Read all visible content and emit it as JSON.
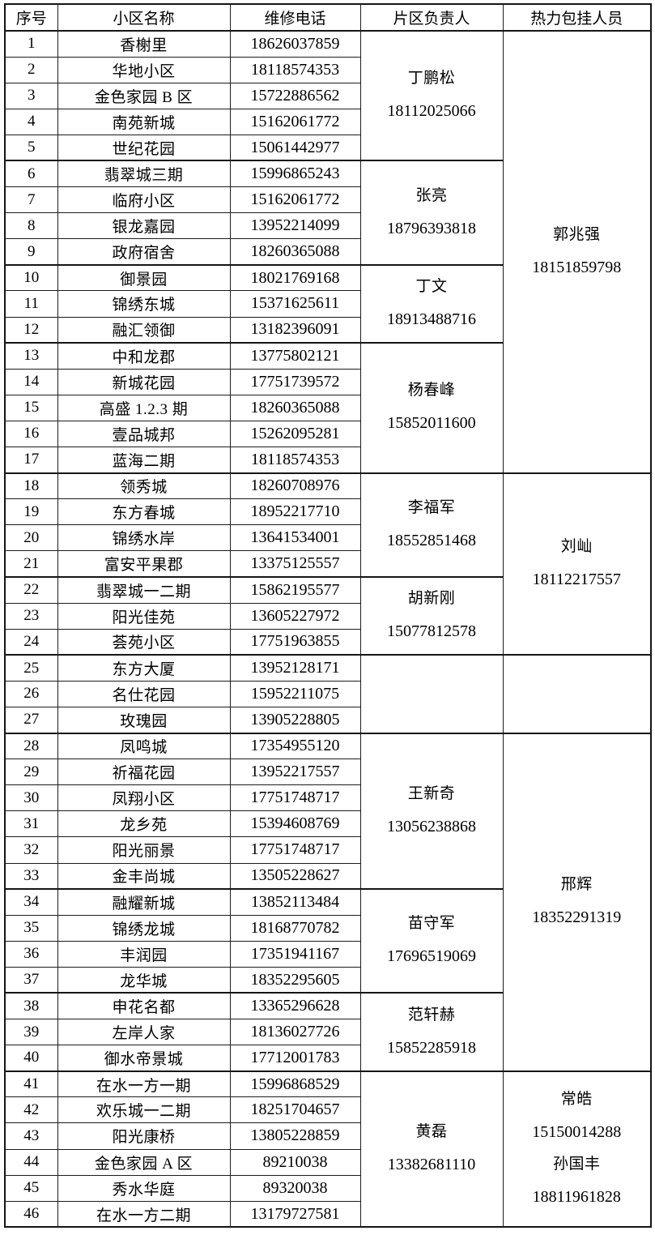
{
  "table": {
    "headers": [
      "序号",
      "小区名称",
      "维修电话",
      "片区负责人",
      "热力包挂人员"
    ],
    "rows": [
      {
        "no": "1",
        "community": "香榭里",
        "phone": "18626037859"
      },
      {
        "no": "2",
        "community": "华地小区",
        "phone": "18118574353"
      },
      {
        "no": "3",
        "community": "金色家园 B 区",
        "phone": "15722886562"
      },
      {
        "no": "4",
        "community": "南苑新城",
        "phone": "15162061772"
      },
      {
        "no": "5",
        "community": "世纪花园",
        "phone": "15061442977"
      },
      {
        "no": "6",
        "community": "翡翠城三期",
        "phone": "15996865243"
      },
      {
        "no": "7",
        "community": "临府小区",
        "phone": "15162061772"
      },
      {
        "no": "8",
        "community": "银龙嘉园",
        "phone": "13952214099"
      },
      {
        "no": "9",
        "community": "政府宿舍",
        "phone": "18260365088"
      },
      {
        "no": "10",
        "community": "御景园",
        "phone": "18021769168"
      },
      {
        "no": "11",
        "community": "锦绣东城",
        "phone": "15371625611"
      },
      {
        "no": "12",
        "community": "融汇领御",
        "phone": "13182396091"
      },
      {
        "no": "13",
        "community": "中和龙郡",
        "phone": "13775802121"
      },
      {
        "no": "14",
        "community": "新城花园",
        "phone": "17751739572"
      },
      {
        "no": "15",
        "community": "高盛 1.2.3 期",
        "phone": "18260365088"
      },
      {
        "no": "16",
        "community": "壹品城邦",
        "phone": "15262095281"
      },
      {
        "no": "17",
        "community": "蓝海二期",
        "phone": "18118574353"
      },
      {
        "no": "18",
        "community": "领秀城",
        "phone": "18260708976"
      },
      {
        "no": "19",
        "community": "东方春城",
        "phone": "18952217710"
      },
      {
        "no": "20",
        "community": "锦绣水岸",
        "phone": "13641534001"
      },
      {
        "no": "21",
        "community": "富安平果郡",
        "phone": "13375125557"
      },
      {
        "no": "22",
        "community": "翡翠城一二期",
        "phone": "15862195577"
      },
      {
        "no": "23",
        "community": "阳光佳苑",
        "phone": "13605227972"
      },
      {
        "no": "24",
        "community": "荟苑小区",
        "phone": "17751963855"
      },
      {
        "no": "25",
        "community": "东方大厦",
        "phone": "13952128171"
      },
      {
        "no": "26",
        "community": "名仕花园",
        "phone": "15952211075"
      },
      {
        "no": "27",
        "community": "玫瑰园",
        "phone": "13905228805"
      },
      {
        "no": "28",
        "community": "凤鸣城",
        "phone": "17354955120"
      },
      {
        "no": "29",
        "community": "祈福花园",
        "phone": "13952217557"
      },
      {
        "no": "30",
        "community": "凤翔小区",
        "phone": "17751748717"
      },
      {
        "no": "31",
        "community": "龙乡苑",
        "phone": "15394608769"
      },
      {
        "no": "32",
        "community": "阳光丽景",
        "phone": "17751748717"
      },
      {
        "no": "33",
        "community": "金丰尚城",
        "phone": "13505228627"
      },
      {
        "no": "34",
        "community": "融耀新城",
        "phone": "13852113484"
      },
      {
        "no": "35",
        "community": "锦绣龙城",
        "phone": "18168770782"
      },
      {
        "no": "36",
        "community": "丰润园",
        "phone": "17351941167"
      },
      {
        "no": "37",
        "community": "龙华城",
        "phone": "18352295605"
      },
      {
        "no": "38",
        "community": "申花名都",
        "phone": "13365296628"
      },
      {
        "no": "39",
        "community": "左岸人家",
        "phone": "18136027726"
      },
      {
        "no": "40",
        "community": "御水帝景城",
        "phone": "17712001783"
      },
      {
        "no": "41",
        "community": "在水一方一期",
        "phone": "15996868529"
      },
      {
        "no": "42",
        "community": "欢乐城一二期",
        "phone": "18251704657"
      },
      {
        "no": "43",
        "community": "阳光康桥",
        "phone": "13805228859"
      },
      {
        "no": "44",
        "community": "金色家园 A 区",
        "phone": "89210038"
      },
      {
        "no": "45",
        "community": "秀水华庭",
        "phone": "89320038"
      },
      {
        "no": "46",
        "community": "在水一方二期",
        "phone": "13179727581"
      }
    ],
    "area_managers": [
      {
        "start": 1,
        "span": 5,
        "lines": [
          "丁鹏松",
          "18112025066"
        ]
      },
      {
        "start": 6,
        "span": 4,
        "lines": [
          "张亮",
          "18796393818"
        ]
      },
      {
        "start": 10,
        "span": 3,
        "lines": [
          "丁文",
          "18913488716"
        ]
      },
      {
        "start": 13,
        "span": 5,
        "lines": [
          "杨春峰",
          "15852011600"
        ]
      },
      {
        "start": 18,
        "span": 4,
        "lines": [
          "李福军",
          "18552851468"
        ]
      },
      {
        "start": 22,
        "span": 3,
        "lines": [
          "胡新刚",
          "15077812578"
        ]
      },
      {
        "start": 25,
        "span": 3,
        "lines": []
      },
      {
        "start": 28,
        "span": 6,
        "lines": [
          "王新奇",
          "13056238868"
        ]
      },
      {
        "start": 34,
        "span": 4,
        "lines": [
          "苗守军",
          "17696519069"
        ]
      },
      {
        "start": 38,
        "span": 3,
        "lines": [
          "范轩赫",
          "15852285918"
        ]
      },
      {
        "start": 41,
        "span": 6,
        "lines": [
          "黄磊",
          "13382681110"
        ]
      }
    ],
    "heating_contacts": [
      {
        "start": 1,
        "span": 17,
        "lines": [
          "郭兆强",
          "18151859798"
        ]
      },
      {
        "start": 18,
        "span": 7,
        "lines": [
          "刘屾",
          "18112217557"
        ]
      },
      {
        "start": 25,
        "span": 3,
        "lines": []
      },
      {
        "start": 28,
        "span": 13,
        "lines": [
          "邢辉",
          "18352291319"
        ]
      },
      {
        "start": 41,
        "span": 6,
        "lines": [
          "常皓",
          "15150014288",
          "孙国丰",
          "18811961828"
        ]
      }
    ]
  }
}
